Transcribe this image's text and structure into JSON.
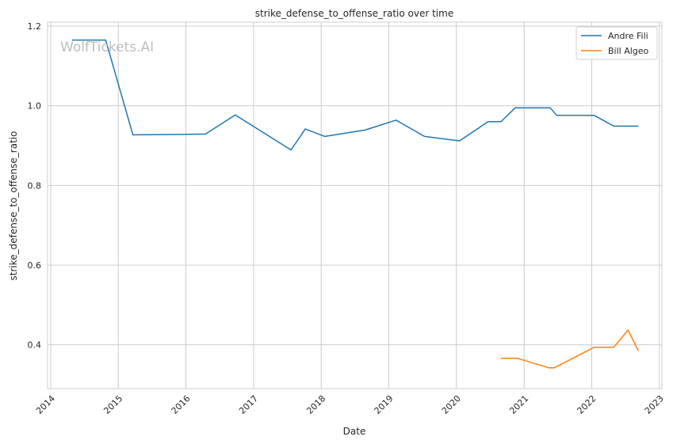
{
  "watermark": "WolfTickets.AI",
  "chart_data": {
    "type": "line",
    "title": "strike_defense_to_offense_ratio over time",
    "xlabel": "Date",
    "ylabel": "strike_defense_to_offense_ratio",
    "x_axis_type": "date",
    "xlim": [
      "2013-12-15",
      "2023-01-15"
    ],
    "ylim": [
      0.29,
      1.21
    ],
    "x_ticks": [
      "2014",
      "2015",
      "2016",
      "2017",
      "2018",
      "2019",
      "2020",
      "2021",
      "2022",
      "2023"
    ],
    "y_ticks": [
      "0.4",
      "0.6",
      "0.8",
      "1.0",
      "1.2"
    ],
    "grid": true,
    "legend_position": "top-right",
    "series": [
      {
        "name": "Andre Fili",
        "color": "#1f77b4",
        "points": [
          [
            "2014-04-26",
            1.165
          ],
          [
            "2014-10-25",
            1.165
          ],
          [
            "2015-03-21",
            0.927
          ],
          [
            "2016-04-16",
            0.929
          ],
          [
            "2016-09-24",
            0.977
          ],
          [
            "2017-07-22",
            0.889
          ],
          [
            "2017-10-07",
            0.942
          ],
          [
            "2018-01-20",
            0.923
          ],
          [
            "2018-08-25",
            0.939
          ],
          [
            "2019-02-09",
            0.964
          ],
          [
            "2019-07-13",
            0.923
          ],
          [
            "2020-01-18",
            0.912
          ],
          [
            "2020-06-20",
            0.96
          ],
          [
            "2020-08-29",
            0.96
          ],
          [
            "2020-11-14",
            0.995
          ],
          [
            "2021-05-22",
            0.995
          ],
          [
            "2021-06-26",
            0.976
          ],
          [
            "2022-01-15",
            0.976
          ],
          [
            "2022-04-30",
            0.949
          ],
          [
            "2022-09-10",
            0.949
          ]
        ]
      },
      {
        "name": "Bill Algeo",
        "color": "#ff7f0e",
        "points": [
          [
            "2020-08-29",
            0.366
          ],
          [
            "2020-11-28",
            0.366
          ],
          [
            "2021-05-15",
            0.342
          ],
          [
            "2021-06-12",
            0.342
          ],
          [
            "2022-01-15",
            0.394
          ],
          [
            "2022-04-30",
            0.394
          ],
          [
            "2022-07-16",
            0.437
          ],
          [
            "2022-09-10",
            0.385
          ]
        ]
      }
    ]
  }
}
